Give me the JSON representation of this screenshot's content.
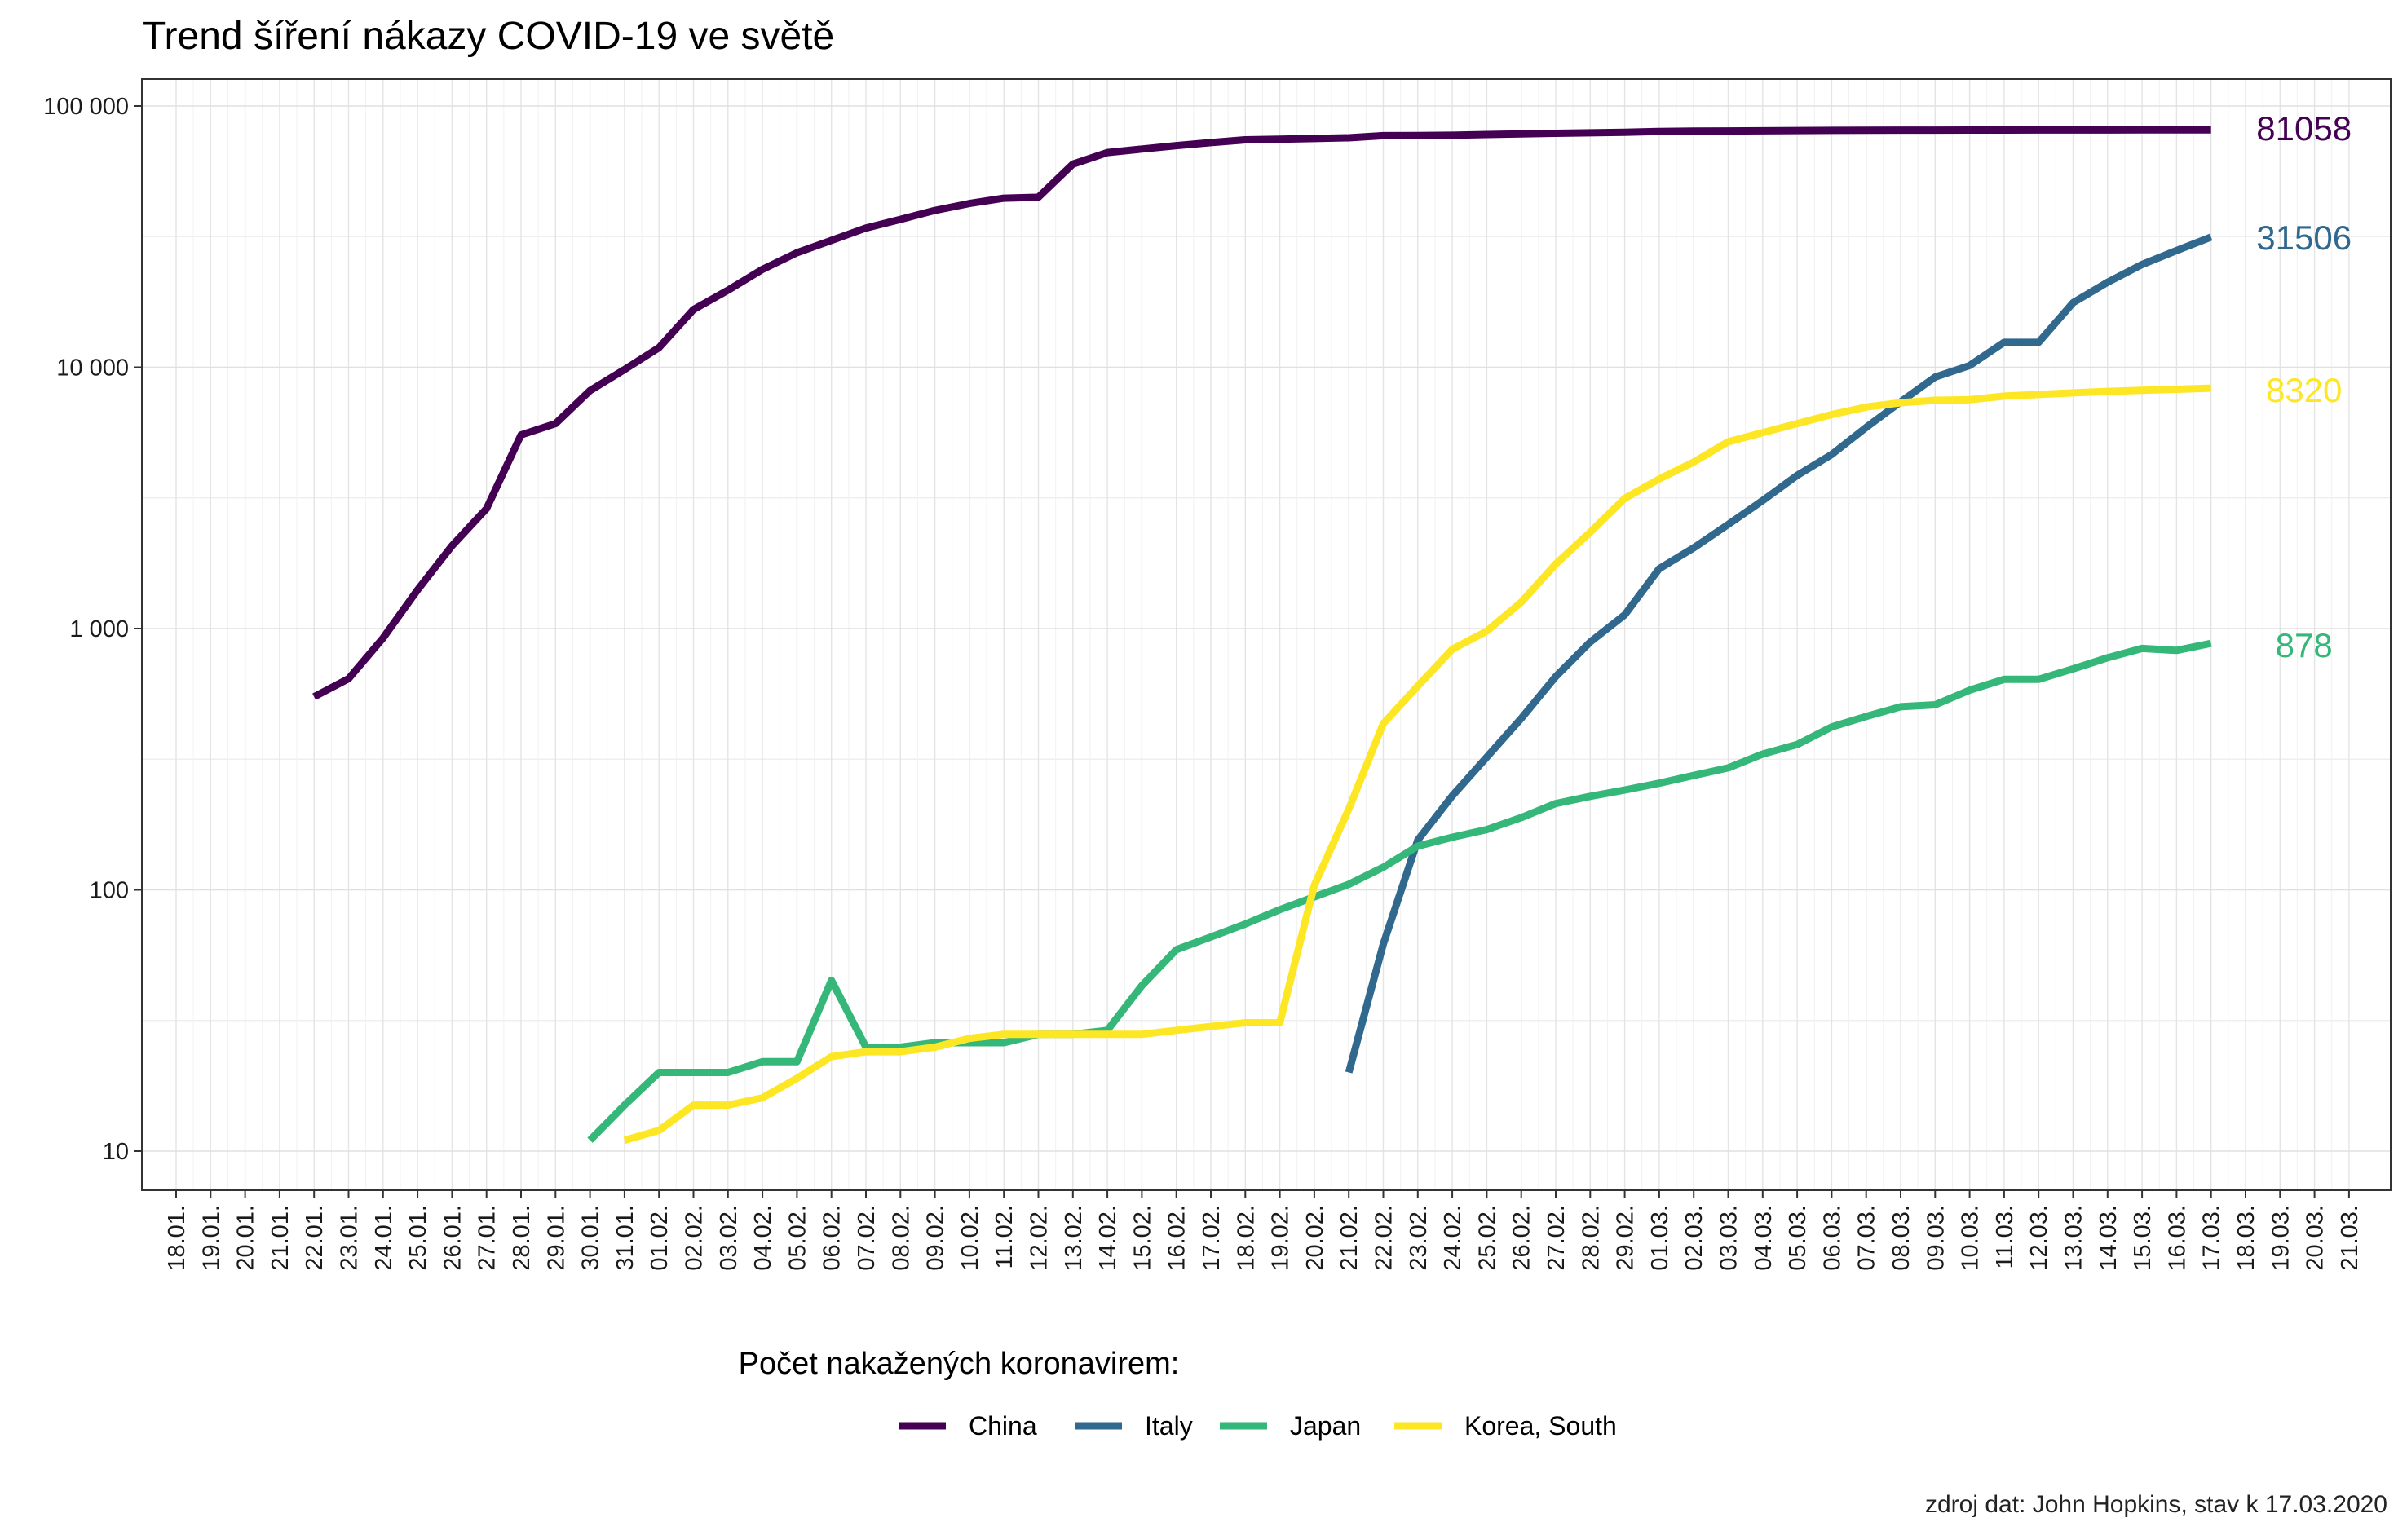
{
  "chart_data": {
    "type": "line",
    "title": "Trend šíření nákazy COVID-19 ve světě",
    "xlabel": "",
    "ylabel": "",
    "y_scale": "log10",
    "ylim": [
      7.5,
      130000
    ],
    "y_ticks": [
      10,
      100,
      1000,
      10000,
      100000
    ],
    "y_tick_labels": [
      "10",
      "100",
      "1 000",
      "10 000",
      "100 000"
    ],
    "x_tick_labels": [
      "18.01.",
      "19.01.",
      "20.01.",
      "21.01.",
      "22.01.",
      "23.01.",
      "24.01.",
      "25.01.",
      "26.01.",
      "27.01.",
      "28.01.",
      "29.01.",
      "30.01.",
      "31.01.",
      "01.02.",
      "02.02.",
      "03.02.",
      "04.02.",
      "05.02.",
      "06.02.",
      "07.02.",
      "08.02.",
      "09.02.",
      "10.02.",
      "11.02.",
      "12.02.",
      "13.02.",
      "14.02.",
      "15.02.",
      "16.02.",
      "17.02.",
      "18.02.",
      "19.02.",
      "20.02.",
      "21.02.",
      "22.02.",
      "23.02.",
      "24.02.",
      "25.02.",
      "26.02.",
      "27.02.",
      "28.02.",
      "29.02.",
      "01.03.",
      "02.03.",
      "03.03.",
      "04.03.",
      "05.03.",
      "06.03.",
      "07.03.",
      "08.03.",
      "09.03.",
      "10.03.",
      "11.03.",
      "12.03.",
      "13.03.",
      "14.03.",
      "15.03.",
      "16.03.",
      "17.03.",
      "18.03.",
      "19.03.",
      "20.03.",
      "21.03."
    ],
    "grid": true,
    "legend_title": "Počet nakažených koronavirem:",
    "legend_position": "bottom",
    "caption": "zdroj dat: John Hopkins, stav k 17.03.2020",
    "series": [
      {
        "name": "China",
        "color": "#440154",
        "end_label": "81058",
        "start_date": "22.01.",
        "values": [
          548,
          643,
          920,
          1406,
          2075,
          2877,
          5509,
          6087,
          8141,
          9802,
          11891,
          16630,
          19716,
          23707,
          27440,
          30587,
          34110,
          36814,
          39829,
          42354,
          44386,
          44759,
          59895,
          66358,
          68413,
          70513,
          72434,
          74211,
          74619,
          75077,
          75550,
          77001,
          77022,
          77241,
          77754,
          78166,
          78600,
          78928,
          79356,
          79932,
          80136,
          80261,
          80386,
          80537,
          80690,
          80770,
          80823,
          80860,
          80887,
          80921,
          80932,
          80945,
          80977,
          81003,
          81033,
          81058
        ]
      },
      {
        "name": "Italy",
        "color": "#31688e",
        "end_label": "31506",
        "start_date": "21.02.",
        "values": [
          20,
          62,
          155,
          229,
          322,
          453,
          655,
          888,
          1128,
          1694,
          2036,
          2502,
          3089,
          3858,
          4636,
          5883,
          7375,
          9172,
          10149,
          12462,
          12462,
          17660,
          21157,
          24747,
          27980,
          31506
        ]
      },
      {
        "name": "Japan",
        "color": "#35b779",
        "end_label": "878",
        "start_date": "30.01.",
        "values": [
          11,
          15,
          20,
          20,
          20,
          22,
          22,
          45,
          25,
          25,
          26,
          26,
          26,
          28,
          28,
          29,
          43,
          59,
          66,
          74,
          84,
          94,
          105,
          122,
          147,
          159,
          170,
          189,
          214,
          228,
          241,
          256,
          274,
          293,
          331,
          360,
          420,
          461,
          502,
          511,
          581,
          639,
          639,
          701,
          773,
          839,
          825,
          878
        ]
      },
      {
        "name": "Korea, South",
        "color": "#fde725",
        "end_label": "8320",
        "start_date": "31.01.",
        "values": [
          11,
          12,
          15,
          15,
          16,
          19,
          23,
          24,
          24,
          25,
          27,
          28,
          28,
          28,
          28,
          28,
          29,
          30,
          31,
          31,
          104,
          204,
          433,
          602,
          833,
          977,
          1261,
          1766,
          2337,
          3150,
          3736,
          4335,
          5186,
          5621,
          6088,
          6593,
          7041,
          7314,
          7478,
          7513,
          7755,
          7869,
          7979,
          8086,
          8162,
          8236,
          8320
        ]
      }
    ]
  }
}
